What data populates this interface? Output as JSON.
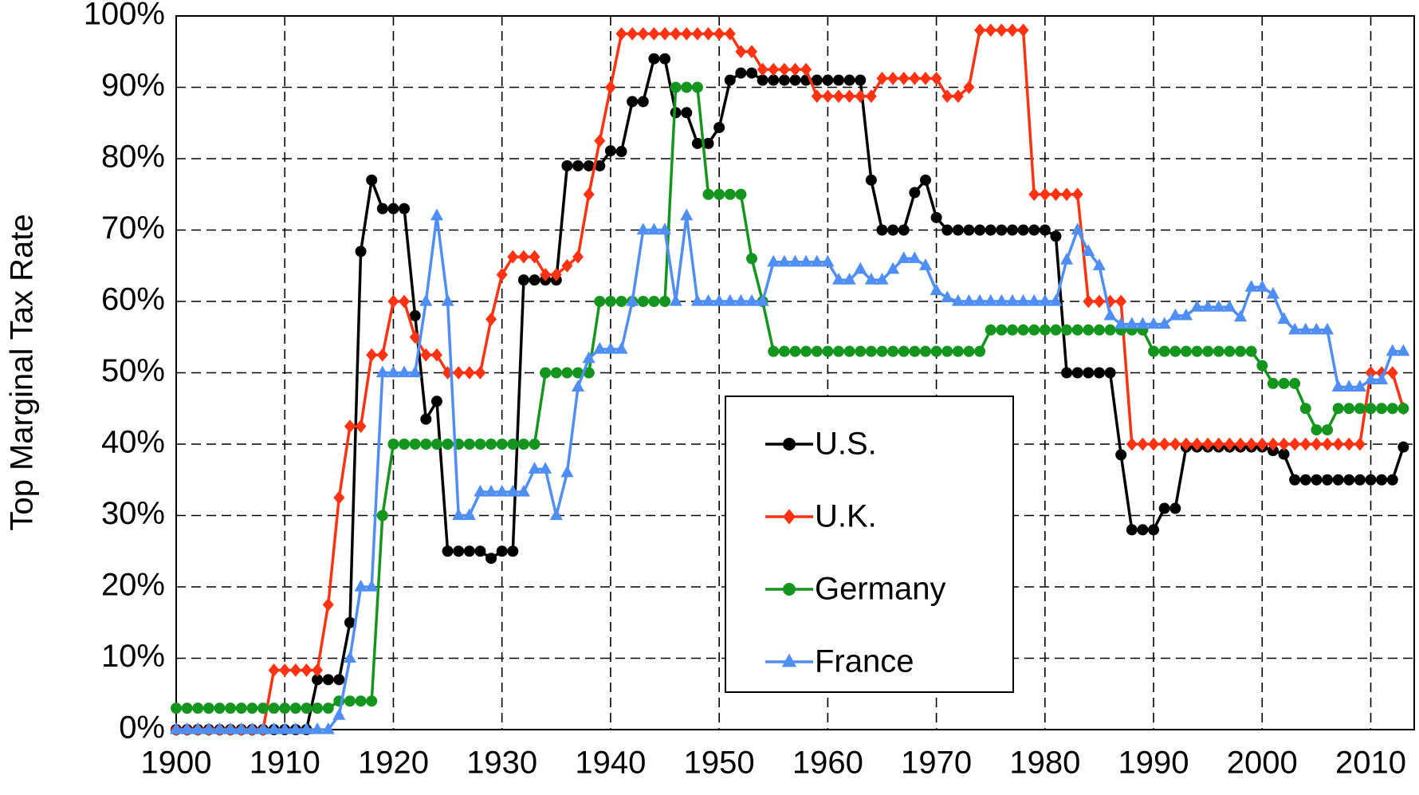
{
  "chart_data": {
    "type": "line",
    "y_label": "Top Marginal Tax Rate",
    "xlim": [
      1900,
      2014
    ],
    "xticks": [
      1900,
      1910,
      1920,
      1930,
      1940,
      1950,
      1960,
      1970,
      1980,
      1990,
      2000,
      2010
    ],
    "ylim": [
      0,
      100
    ],
    "yticks": [
      {
        "value": 0,
        "label": "0%"
      },
      {
        "value": 10,
        "label": "10%"
      },
      {
        "value": 20,
        "label": "20%"
      },
      {
        "value": 30,
        "label": "30%"
      },
      {
        "value": 40,
        "label": "40%"
      },
      {
        "value": 50,
        "label": "50%"
      },
      {
        "value": 60,
        "label": "60%"
      },
      {
        "value": 70,
        "label": "70%"
      },
      {
        "value": 80,
        "label": "80%"
      },
      {
        "value": 90,
        "label": "90%"
      },
      {
        "value": 100,
        "label": "100%"
      }
    ],
    "grid": true,
    "grid_style": "dashed",
    "legend": "center",
    "x": [
      1900,
      1901,
      1902,
      1903,
      1904,
      1905,
      1906,
      1907,
      1908,
      1909,
      1910,
      1911,
      1912,
      1913,
      1914,
      1915,
      1916,
      1917,
      1918,
      1919,
      1920,
      1921,
      1922,
      1923,
      1924,
      1925,
      1926,
      1927,
      1928,
      1929,
      1930,
      1931,
      1932,
      1933,
      1934,
      1935,
      1936,
      1937,
      1938,
      1939,
      1940,
      1941,
      1942,
      1943,
      1944,
      1945,
      1946,
      1947,
      1948,
      1949,
      1950,
      1951,
      1952,
      1953,
      1954,
      1955,
      1956,
      1957,
      1958,
      1959,
      1960,
      1961,
      1962,
      1963,
      1964,
      1965,
      1966,
      1967,
      1968,
      1969,
      1970,
      1971,
      1972,
      1973,
      1974,
      1975,
      1976,
      1977,
      1978,
      1979,
      1980,
      1981,
      1982,
      1983,
      1984,
      1985,
      1986,
      1987,
      1988,
      1989,
      1990,
      1991,
      1992,
      1993,
      1994,
      1995,
      1996,
      1997,
      1998,
      1999,
      2000,
      2001,
      2002,
      2003,
      2004,
      2005,
      2006,
      2007,
      2008,
      2009,
      2010,
      2011,
      2012,
      2013
    ],
    "series": [
      {
        "name": "U.S.",
        "color": "#000000",
        "marker": "circle",
        "values": [
          0,
          0,
          0,
          0,
          0,
          0,
          0,
          0,
          0,
          0,
          0,
          0,
          0,
          7,
          7,
          7,
          15,
          67,
          77,
          73,
          73,
          73,
          58,
          43.5,
          46,
          25,
          25,
          25,
          25,
          24,
          25,
          25,
          63,
          63,
          63,
          63,
          79,
          79,
          79,
          79,
          81.1,
          81,
          88,
          88,
          94,
          94,
          86.45,
          86.45,
          82.13,
          82.13,
          84.36,
          91,
          92,
          92,
          91,
          91,
          91,
          91,
          91,
          91,
          91,
          91,
          91,
          91,
          77,
          70,
          70,
          70,
          75.25,
          77,
          71.75,
          70,
          70,
          70,
          70,
          70,
          70,
          70,
          70,
          70,
          70,
          69.13,
          50,
          50,
          50,
          50,
          50,
          38.5,
          28,
          28,
          28,
          31,
          31,
          39.6,
          39.6,
          39.6,
          39.6,
          39.6,
          39.6,
          39.6,
          39.6,
          39.1,
          38.6,
          35,
          35,
          35,
          35,
          35,
          35,
          35,
          35,
          35,
          35,
          39.6
        ]
      },
      {
        "name": "U.K.",
        "color": "#ff3311",
        "marker": "diamond",
        "values": [
          0,
          0,
          0,
          0,
          0,
          0,
          0,
          0,
          0,
          8.33,
          8.33,
          8.33,
          8.33,
          8.33,
          17.5,
          32.5,
          42.5,
          42.5,
          52.5,
          52.5,
          60,
          60,
          55,
          52.5,
          52.5,
          50,
          50,
          50,
          50,
          57.5,
          63.75,
          66.25,
          66.25,
          66.25,
          63.75,
          63.75,
          65,
          66.25,
          75,
          82.5,
          90,
          97.5,
          97.5,
          97.5,
          97.5,
          97.5,
          97.5,
          97.5,
          97.5,
          97.5,
          97.5,
          97.5,
          95,
          95,
          92.5,
          92.5,
          92.5,
          92.5,
          92.5,
          88.75,
          88.75,
          88.75,
          88.75,
          88.75,
          88.75,
          91.25,
          91.25,
          91.25,
          91.25,
          91.25,
          91.25,
          88.75,
          88.75,
          90,
          98,
          98,
          98,
          98,
          98,
          75,
          75,
          75,
          75,
          75,
          60,
          60,
          60,
          60,
          40,
          40,
          40,
          40,
          40,
          40,
          40,
          40,
          40,
          40,
          40,
          40,
          40,
          40,
          40,
          40,
          40,
          40,
          40,
          40,
          40,
          40,
          50,
          50,
          50,
          45
        ]
      },
      {
        "name": "Germany",
        "color": "#14961e",
        "marker": "circle",
        "values": [
          3,
          3,
          3,
          3,
          3,
          3,
          3,
          3,
          3,
          3,
          3,
          3,
          3,
          3,
          3,
          4,
          4,
          4,
          4,
          30,
          40,
          40,
          40,
          40,
          40,
          40,
          40,
          40,
          40,
          40,
          40,
          40,
          40,
          40,
          50,
          50,
          50,
          50,
          50,
          60,
          60,
          60,
          60,
          60,
          60,
          60,
          90,
          90,
          90,
          75,
          75,
          75,
          75,
          66,
          60,
          53,
          53,
          53,
          53,
          53,
          53,
          53,
          53,
          53,
          53,
          53,
          53,
          53,
          53,
          53,
          53,
          53,
          53,
          53,
          53,
          56,
          56,
          56,
          56,
          56,
          56,
          56,
          56,
          56,
          56,
          56,
          56,
          56,
          56,
          56,
          53,
          53,
          53,
          53,
          53,
          53,
          53,
          53,
          53,
          53,
          51,
          48.5,
          48.5,
          48.5,
          45,
          42,
          42,
          45,
          45,
          45,
          45,
          45,
          45,
          45
        ]
      },
      {
        "name": "France",
        "color": "#4f8ef5",
        "marker": "triangle",
        "values": [
          0,
          0,
          0,
          0,
          0,
          0,
          0,
          0,
          0,
          0,
          0,
          0,
          0,
          0,
          0,
          2,
          10,
          20,
          20,
          50,
          50,
          50,
          50,
          60,
          72,
          60,
          30,
          30,
          33.3,
          33.3,
          33.3,
          33.3,
          33.3,
          36.5,
          36.5,
          30,
          36,
          48,
          52,
          53.3,
          53.3,
          53.3,
          60,
          70,
          70,
          70,
          60,
          72,
          60,
          60,
          60,
          60,
          60,
          60,
          60,
          65.5,
          65.5,
          65.5,
          65.5,
          65.5,
          65.5,
          63,
          63,
          64.5,
          63,
          63,
          64.5,
          66,
          66,
          65,
          61.5,
          60.5,
          60,
          60,
          60,
          60,
          60,
          60,
          60,
          60,
          60,
          60,
          65.8,
          70,
          67,
          65,
          58,
          56.8,
          56.8,
          56.8,
          56.8,
          56.8,
          58,
          58,
          59.2,
          59.2,
          59.2,
          59.2,
          57.8,
          62,
          62,
          61,
          57.5,
          56,
          56,
          56,
          56,
          48,
          48,
          48,
          49,
          49,
          53,
          53
        ]
      }
    ]
  }
}
